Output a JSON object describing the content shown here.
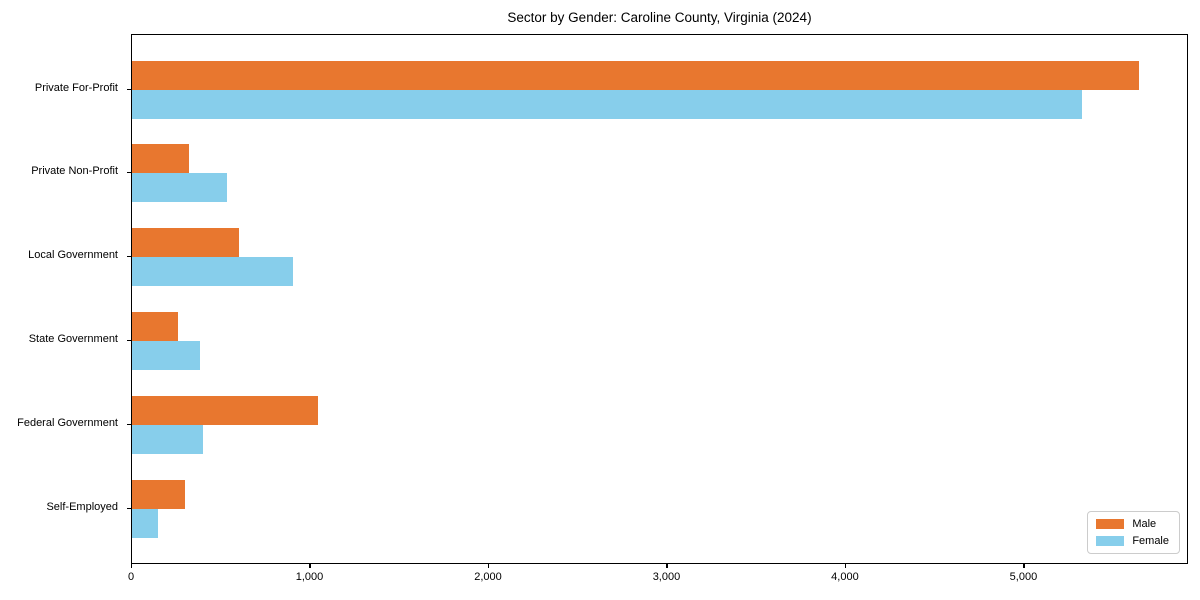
{
  "title": "Sector by Gender: Caroline County, Virginia (2024)",
  "chart_data": {
    "type": "bar",
    "orientation": "horizontal",
    "title": "Sector by Gender: Caroline County, Virginia (2024)",
    "categories": [
      "Private For-Profit",
      "Private Non-Profit",
      "Local Government",
      "State Government",
      "Federal Government",
      "Self-Employed"
    ],
    "series": [
      {
        "name": "Male",
        "color": "#E8772F",
        "values": [
          5640,
          320,
          600,
          260,
          1040,
          295
        ]
      },
      {
        "name": "Female",
        "color": "#87CEEB",
        "values": [
          5320,
          530,
          900,
          380,
          400,
          145
        ]
      }
    ],
    "xlabel": "",
    "ylabel": "",
    "xlim": [
      0,
      5922
    ],
    "xticks": [
      0,
      1000,
      2000,
      3000,
      4000,
      5000
    ],
    "xtick_labels": [
      "0",
      "1,000",
      "2,000",
      "3,000",
      "4,000",
      "5,000"
    ],
    "grid": false,
    "legend_position": "lower right",
    "legend_entries": [
      "Male",
      "Female"
    ]
  },
  "colors": {
    "male": "#E8772F",
    "female": "#87CEEB",
    "axis": "#000000",
    "legend_border": "#CCCCCC",
    "background": "#FFFFFF"
  }
}
